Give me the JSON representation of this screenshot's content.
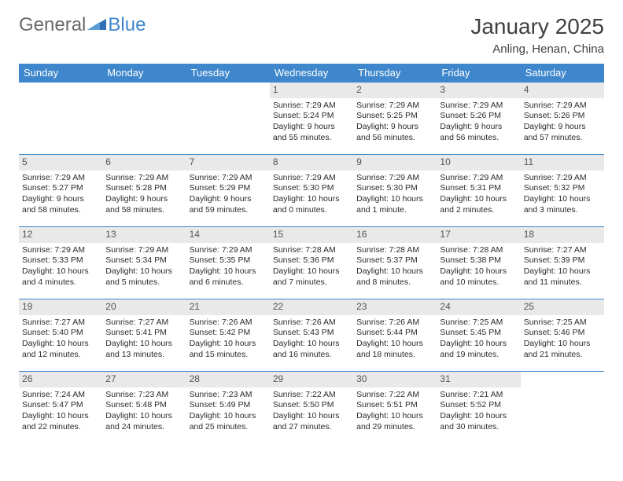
{
  "logo": {
    "word1": "General",
    "word2": "Blue",
    "color1": "#6a6a6a",
    "color2": "#3f87cc"
  },
  "title": "January 2025",
  "location": "Anling, Henan, China",
  "colors": {
    "header_bg": "#3f87cc",
    "daynum_bg": "#e9e9e9",
    "text": "#2b2b2b"
  },
  "day_headers": [
    "Sunday",
    "Monday",
    "Tuesday",
    "Wednesday",
    "Thursday",
    "Friday",
    "Saturday"
  ],
  "weeks": [
    [
      null,
      null,
      null,
      {
        "n": "1",
        "sr": "Sunrise: 7:29 AM",
        "ss": "Sunset: 5:24 PM",
        "dl": "Daylight: 9 hours and 55 minutes."
      },
      {
        "n": "2",
        "sr": "Sunrise: 7:29 AM",
        "ss": "Sunset: 5:25 PM",
        "dl": "Daylight: 9 hours and 56 minutes."
      },
      {
        "n": "3",
        "sr": "Sunrise: 7:29 AM",
        "ss": "Sunset: 5:26 PM",
        "dl": "Daylight: 9 hours and 56 minutes."
      },
      {
        "n": "4",
        "sr": "Sunrise: 7:29 AM",
        "ss": "Sunset: 5:26 PM",
        "dl": "Daylight: 9 hours and 57 minutes."
      }
    ],
    [
      {
        "n": "5",
        "sr": "Sunrise: 7:29 AM",
        "ss": "Sunset: 5:27 PM",
        "dl": "Daylight: 9 hours and 58 minutes."
      },
      {
        "n": "6",
        "sr": "Sunrise: 7:29 AM",
        "ss": "Sunset: 5:28 PM",
        "dl": "Daylight: 9 hours and 58 minutes."
      },
      {
        "n": "7",
        "sr": "Sunrise: 7:29 AM",
        "ss": "Sunset: 5:29 PM",
        "dl": "Daylight: 9 hours and 59 minutes."
      },
      {
        "n": "8",
        "sr": "Sunrise: 7:29 AM",
        "ss": "Sunset: 5:30 PM",
        "dl": "Daylight: 10 hours and 0 minutes."
      },
      {
        "n": "9",
        "sr": "Sunrise: 7:29 AM",
        "ss": "Sunset: 5:30 PM",
        "dl": "Daylight: 10 hours and 1 minute."
      },
      {
        "n": "10",
        "sr": "Sunrise: 7:29 AM",
        "ss": "Sunset: 5:31 PM",
        "dl": "Daylight: 10 hours and 2 minutes."
      },
      {
        "n": "11",
        "sr": "Sunrise: 7:29 AM",
        "ss": "Sunset: 5:32 PM",
        "dl": "Daylight: 10 hours and 3 minutes."
      }
    ],
    [
      {
        "n": "12",
        "sr": "Sunrise: 7:29 AM",
        "ss": "Sunset: 5:33 PM",
        "dl": "Daylight: 10 hours and 4 minutes."
      },
      {
        "n": "13",
        "sr": "Sunrise: 7:29 AM",
        "ss": "Sunset: 5:34 PM",
        "dl": "Daylight: 10 hours and 5 minutes."
      },
      {
        "n": "14",
        "sr": "Sunrise: 7:29 AM",
        "ss": "Sunset: 5:35 PM",
        "dl": "Daylight: 10 hours and 6 minutes."
      },
      {
        "n": "15",
        "sr": "Sunrise: 7:28 AM",
        "ss": "Sunset: 5:36 PM",
        "dl": "Daylight: 10 hours and 7 minutes."
      },
      {
        "n": "16",
        "sr": "Sunrise: 7:28 AM",
        "ss": "Sunset: 5:37 PM",
        "dl": "Daylight: 10 hours and 8 minutes."
      },
      {
        "n": "17",
        "sr": "Sunrise: 7:28 AM",
        "ss": "Sunset: 5:38 PM",
        "dl": "Daylight: 10 hours and 10 minutes."
      },
      {
        "n": "18",
        "sr": "Sunrise: 7:27 AM",
        "ss": "Sunset: 5:39 PM",
        "dl": "Daylight: 10 hours and 11 minutes."
      }
    ],
    [
      {
        "n": "19",
        "sr": "Sunrise: 7:27 AM",
        "ss": "Sunset: 5:40 PM",
        "dl": "Daylight: 10 hours and 12 minutes."
      },
      {
        "n": "20",
        "sr": "Sunrise: 7:27 AM",
        "ss": "Sunset: 5:41 PM",
        "dl": "Daylight: 10 hours and 13 minutes."
      },
      {
        "n": "21",
        "sr": "Sunrise: 7:26 AM",
        "ss": "Sunset: 5:42 PM",
        "dl": "Daylight: 10 hours and 15 minutes."
      },
      {
        "n": "22",
        "sr": "Sunrise: 7:26 AM",
        "ss": "Sunset: 5:43 PM",
        "dl": "Daylight: 10 hours and 16 minutes."
      },
      {
        "n": "23",
        "sr": "Sunrise: 7:26 AM",
        "ss": "Sunset: 5:44 PM",
        "dl": "Daylight: 10 hours and 18 minutes."
      },
      {
        "n": "24",
        "sr": "Sunrise: 7:25 AM",
        "ss": "Sunset: 5:45 PM",
        "dl": "Daylight: 10 hours and 19 minutes."
      },
      {
        "n": "25",
        "sr": "Sunrise: 7:25 AM",
        "ss": "Sunset: 5:46 PM",
        "dl": "Daylight: 10 hours and 21 minutes."
      }
    ],
    [
      {
        "n": "26",
        "sr": "Sunrise: 7:24 AM",
        "ss": "Sunset: 5:47 PM",
        "dl": "Daylight: 10 hours and 22 minutes."
      },
      {
        "n": "27",
        "sr": "Sunrise: 7:23 AM",
        "ss": "Sunset: 5:48 PM",
        "dl": "Daylight: 10 hours and 24 minutes."
      },
      {
        "n": "28",
        "sr": "Sunrise: 7:23 AM",
        "ss": "Sunset: 5:49 PM",
        "dl": "Daylight: 10 hours and 25 minutes."
      },
      {
        "n": "29",
        "sr": "Sunrise: 7:22 AM",
        "ss": "Sunset: 5:50 PM",
        "dl": "Daylight: 10 hours and 27 minutes."
      },
      {
        "n": "30",
        "sr": "Sunrise: 7:22 AM",
        "ss": "Sunset: 5:51 PM",
        "dl": "Daylight: 10 hours and 29 minutes."
      },
      {
        "n": "31",
        "sr": "Sunrise: 7:21 AM",
        "ss": "Sunset: 5:52 PM",
        "dl": "Daylight: 10 hours and 30 minutes."
      },
      null
    ]
  ]
}
